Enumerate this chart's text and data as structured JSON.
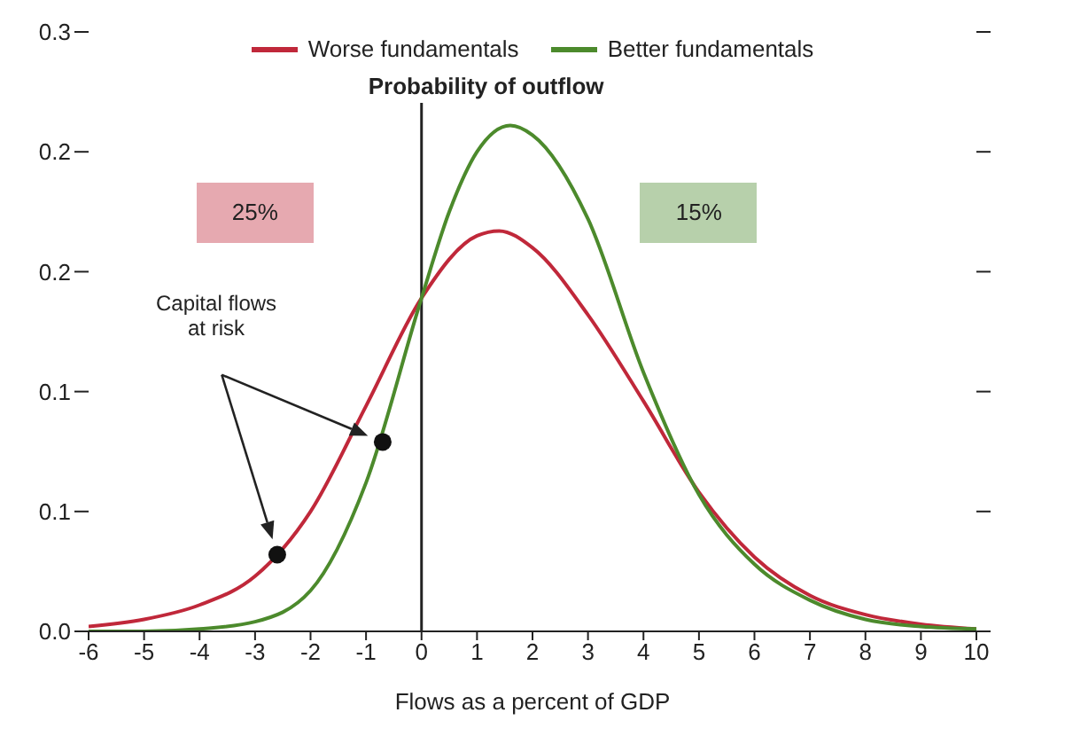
{
  "chart_data": {
    "type": "line",
    "xlabel": "Flows as a percent of GDP",
    "xlim": [
      -6,
      10
    ],
    "xticks": [
      -6,
      -5,
      -4,
      -3,
      -2,
      -1,
      0,
      1,
      2,
      3,
      4,
      5,
      6,
      7,
      8,
      9,
      10
    ],
    "ylim": [
      0,
      0.25
    ],
    "yticks": [
      {
        "value": 0,
        "label": "0.0"
      },
      {
        "value": 0.05,
        "label": "0.1"
      },
      {
        "value": 0.1,
        "label": "0.1"
      },
      {
        "value": 0.15,
        "label": "0.2"
      },
      {
        "value": 0.2,
        "label": "0.2"
      },
      {
        "value": 0.25,
        "label": "0.3"
      }
    ],
    "legend": "top",
    "marker": "none",
    "line_style": "solid",
    "series": [
      {
        "name": "Worse fundamentals",
        "color": "#c0283a",
        "x": [
          -6,
          -5,
          -4,
          -3,
          -2,
          -1,
          0,
          1,
          1.4,
          2,
          3,
          4,
          5,
          6,
          7,
          8,
          9,
          10
        ],
        "values": [
          0.002,
          0.005,
          0.011,
          0.023,
          0.05,
          0.094,
          0.139,
          0.165,
          0.167,
          0.16,
          0.132,
          0.096,
          0.058,
          0.031,
          0.015,
          0.007,
          0.003,
          0.001
        ]
      },
      {
        "name": "Better fundamentals",
        "color": "#4c8a2c",
        "x": [
          -6,
          -5,
          -4,
          -3,
          -2,
          -1,
          0,
          0.5,
          1,
          1.6,
          2,
          3,
          4,
          5,
          6,
          7,
          8,
          9,
          10
        ],
        "values": [
          0,
          0,
          0.001,
          0.004,
          0.017,
          0.062,
          0.139,
          0.175,
          0.2,
          0.211,
          0.207,
          0.172,
          0.108,
          0.057,
          0.028,
          0.013,
          0.005,
          0.002,
          0.001
        ]
      },
      {
        "type": "scatter",
        "color": "#111111",
        "marker": "circle",
        "x": [
          -2.6,
          -0.7
        ],
        "values": [
          0.032,
          0.079
        ]
      }
    ],
    "ref_lines": [
      {
        "axis": "x",
        "value": 0,
        "label": "Probability of outflow",
        "color": "#222222"
      }
    ],
    "annotations": [
      "Capital flows at risk",
      "25%",
      "15%"
    ]
  }
}
